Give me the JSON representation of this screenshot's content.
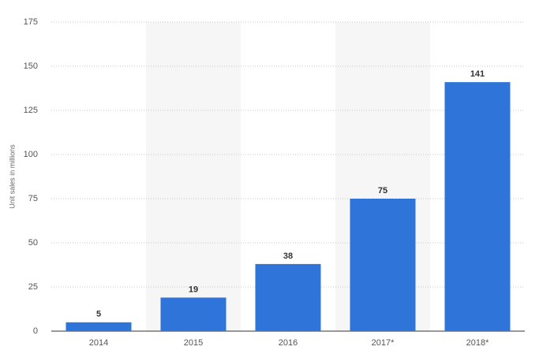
{
  "chart_data": {
    "type": "bar",
    "y_label": "Unit sales in millions",
    "categories": [
      "2014",
      "2015",
      "2016",
      "2017*",
      "2018*"
    ],
    "values": [
      5,
      19,
      38,
      75,
      141
    ],
    "color": "#2e74d9",
    "ylim": [
      0,
      175
    ],
    "yticks": [
      0,
      25,
      50,
      75,
      100,
      125,
      150,
      175
    ],
    "grid": true
  }
}
